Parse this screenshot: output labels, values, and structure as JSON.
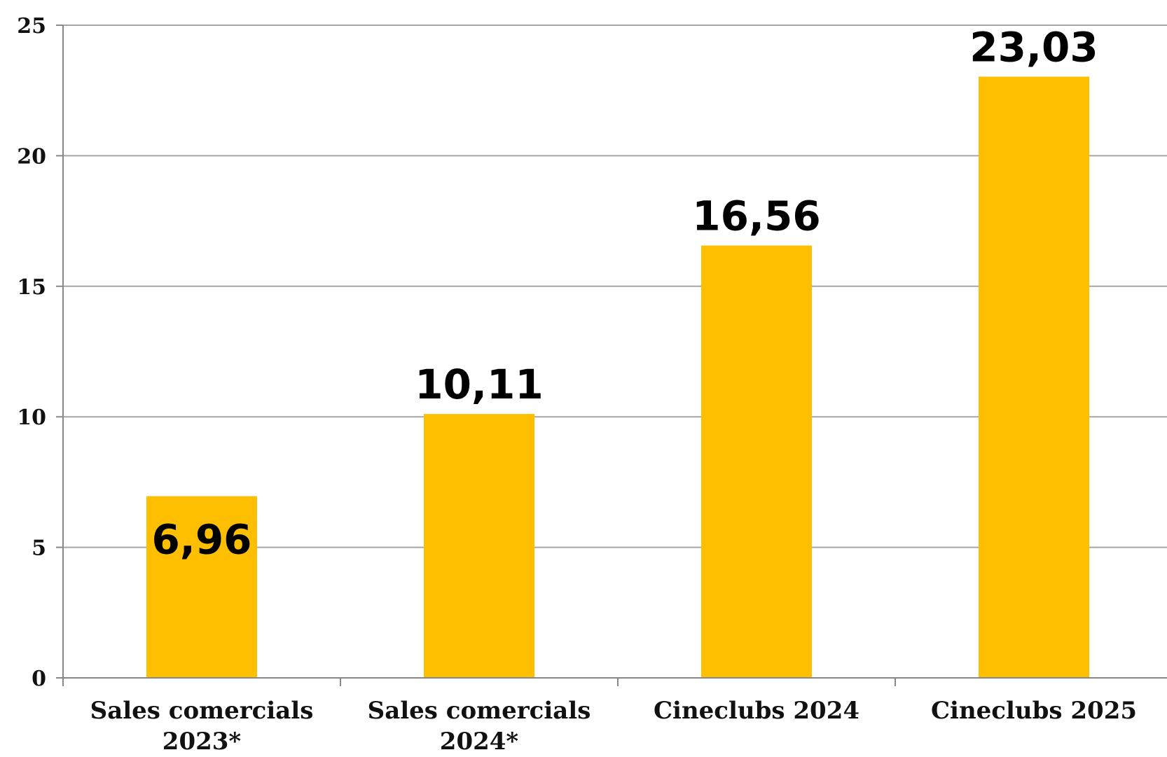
{
  "chart_data": {
    "type": "bar",
    "title": "",
    "xlabel": "",
    "ylabel": "",
    "categories": [
      [
        "Sales comercials",
        "2023*"
      ],
      [
        "Sales comercials",
        "2024*"
      ],
      [
        "Cineclubs 2024"
      ],
      [
        "Cineclubs 2025"
      ]
    ],
    "values": [
      6.96,
      10.11,
      16.56,
      23.03
    ],
    "data_labels": [
      "6,96",
      "10,11",
      "16,56",
      "23,03"
    ],
    "ylim": [
      0,
      25
    ],
    "yticks": [
      0,
      5,
      10,
      15,
      20,
      25
    ],
    "grid": true,
    "legend": "none",
    "colors": {
      "bar": "#FDBF00",
      "grid": "#a6a6a6",
      "axis": "#888888"
    }
  }
}
